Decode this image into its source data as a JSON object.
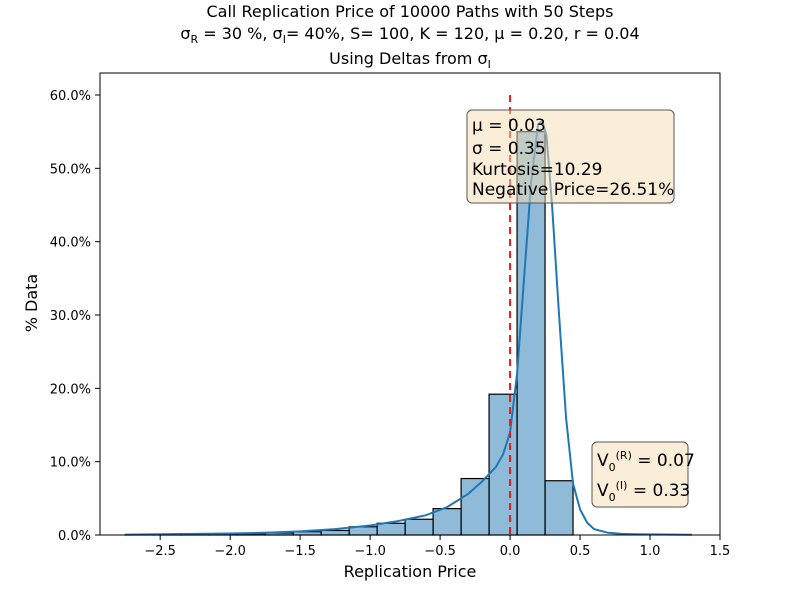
{
  "chart_data": {
    "type": "bar",
    "title_lines": [
      "Call Replication Price of 10000 Paths with 50 Steps",
      "σR = 30 %, σI= 40%, S= 100, K = 120, μ = 0.20, r = 0.04",
      "Using Deltas from σI"
    ],
    "xlabel": "Replication Price",
    "ylabel": "% Data",
    "xlim": [
      -2.93,
      1.5
    ],
    "ylim": [
      0,
      0.63
    ],
    "x_ticks": [
      -2.5,
      -2.0,
      -1.5,
      -1.0,
      -0.5,
      0.0,
      0.5,
      1.0,
      1.5
    ],
    "x_tick_labels": [
      "−2.5",
      "−2.0",
      "−1.5",
      "−1.0",
      "−0.5",
      "0.0",
      "0.5",
      "1.0",
      "1.5"
    ],
    "y_ticks": [
      0,
      0.1,
      0.2,
      0.3,
      0.4,
      0.5,
      0.6
    ],
    "y_tick_labels": [
      "0.0%",
      "10.0%",
      "20.0%",
      "30.0%",
      "40.0%",
      "50.0%",
      "60.0%"
    ],
    "bin_edges": [
      -2.75,
      -2.55,
      -2.35,
      -2.15,
      -1.95,
      -1.75,
      -1.55,
      -1.35,
      -1.15,
      -0.95,
      -0.75,
      -0.55,
      -0.35,
      -0.15,
      0.05,
      0.25,
      0.45
    ],
    "values": [
      0.0003,
      0.0005,
      0.0008,
      0.0012,
      0.0018,
      0.0028,
      0.0045,
      0.0062,
      0.0112,
      0.016,
      0.0215,
      0.036,
      0.077,
      0.192,
      0.55,
      0.074
    ],
    "kde_x": [
      -2.75,
      -2.5,
      -2.25,
      -2.0,
      -1.75,
      -1.5,
      -1.25,
      -1.0,
      -0.8,
      -0.6,
      -0.45,
      -0.3,
      -0.2,
      -0.1,
      -0.05,
      0.0,
      0.05,
      0.1,
      0.15,
      0.2,
      0.23,
      0.26,
      0.3,
      0.35,
      0.4,
      0.45,
      0.5,
      0.55,
      0.6,
      0.7,
      0.8,
      0.9,
      1.0,
      1.1,
      1.2,
      1.3
    ],
    "kde_y": [
      0.0005,
      0.001,
      0.0015,
      0.002,
      0.003,
      0.005,
      0.008,
      0.013,
      0.019,
      0.027,
      0.038,
      0.056,
      0.073,
      0.093,
      0.11,
      0.14,
      0.22,
      0.35,
      0.48,
      0.56,
      0.565,
      0.545,
      0.45,
      0.3,
      0.16,
      0.07,
      0.035,
      0.017,
      0.008,
      0.003,
      0.0015,
      0.001,
      0.0008,
      0.0006,
      0.0005,
      0.0004
    ],
    "vline_x": 0.0,
    "stats_box": [
      "μ = 0.03",
      "σ = 0.35",
      "Kurtosis=10.29",
      "Negative Price=26.51%"
    ],
    "value_box": [
      "V0(R) = 0.07",
      "V0(I) = 0.33"
    ],
    "colors": {
      "bar": "#1f77b4",
      "kde": "#1f77b4",
      "vline": "#e31a1c",
      "box": "#f5deb3"
    },
    "grid": false
  }
}
